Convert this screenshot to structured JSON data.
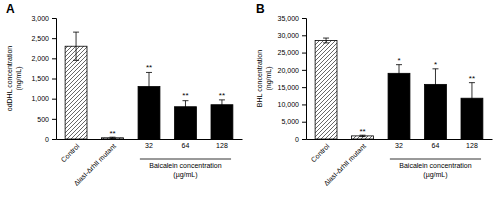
{
  "chart_data": [
    {
      "type": "bar",
      "title": "A",
      "ylabel": "odDHL concentration\n(ng/mL)",
      "categories": [
        "Control",
        "ΔlasI-ΔrhII mutant",
        "32",
        "64",
        "128"
      ],
      "values": [
        2300,
        30,
        1300,
        800,
        850
      ],
      "errors": [
        350,
        15,
        350,
        150,
        120
      ],
      "colors": [
        "white",
        "white",
        "black",
        "black",
        "black"
      ],
      "ylim": [
        0,
        3000
      ],
      "yticks": [
        0,
        500,
        {
          "value": 1000,
          "label": "1,000"
        },
        {
          "value": 1500,
          "label": "1,500"
        },
        {
          "value": 2000,
          "label": "2,000"
        },
        {
          "value": 2500,
          "label": "2,500"
        },
        {
          "value": 3000,
          "label": "3,000"
        }
      ],
      "grid": false,
      "annotations": [
        {
          "text": "**",
          "x": "ΔlasI-ΔrhII mutant",
          "y": 55
        },
        {
          "text": "**",
          "x": "32",
          "y": 1680
        },
        {
          "text": "**",
          "x": "64",
          "y": 980
        },
        {
          "text": "**",
          "x": "128",
          "y": 1000
        },
        {
          "text": "Baicalein concentration\n(µg/mL)",
          "x": [
            "32",
            "128"
          ]
        }
      ]
    },
    {
      "type": "bar",
      "title": "B",
      "ylabel": "BHL concentration\n(ng/mL)",
      "categories": [
        "Control",
        "ΔlasI-ΔrhII mutant",
        "32",
        "64",
        "128"
      ],
      "values": [
        28500,
        900,
        19000,
        15800,
        11800
      ],
      "errors": [
        700,
        200,
        2500,
        4500,
        4500
      ],
      "colors": [
        "white",
        "white",
        "black",
        "black",
        "black"
      ],
      "ylim": [
        0,
        35000
      ],
      "yticks": [
        0,
        {
          "value": 5000,
          "label": "5,000"
        },
        {
          "value": 10000,
          "label": "10,000"
        },
        {
          "value": 15000,
          "label": "15,000"
        },
        {
          "value": 20000,
          "label": "20,000"
        },
        {
          "value": 25000,
          "label": "25,000"
        },
        {
          "value": 30000,
          "label": "30,000"
        },
        {
          "value": 35000,
          "label": "35,000"
        }
      ],
      "grid": false,
      "annotations": [
        {
          "text": "**",
          "x": "ΔlasI-ΔrhII mutant",
          "y": 1300
        },
        {
          "text": "*",
          "x": "32",
          "y": 21800
        },
        {
          "text": "*",
          "x": "64",
          "y": 20600
        },
        {
          "text": "**",
          "x": "128",
          "y": 16600
        },
        {
          "text": "Baicalein concentration\n(µg/mL)",
          "x": [
            "32",
            "128"
          ]
        }
      ]
    }
  ]
}
